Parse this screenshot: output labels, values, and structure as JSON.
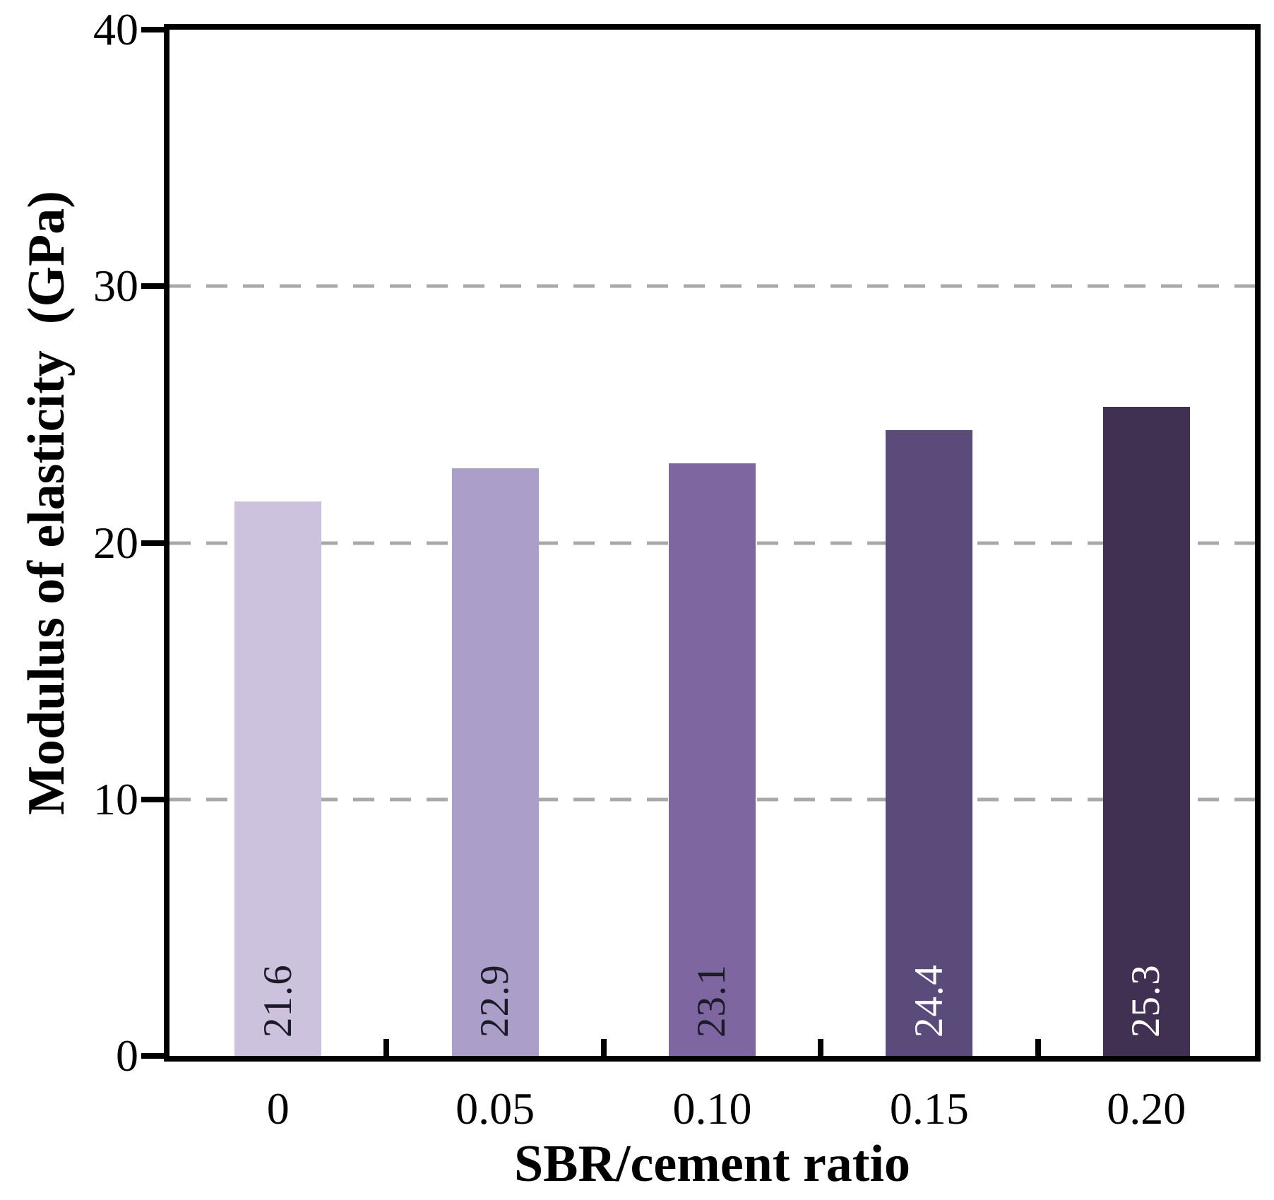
{
  "chart_data": {
    "type": "bar",
    "title": "",
    "xlabel": "SBR/cement ratio",
    "ylabel": "Modulus of elasticity  (GPa)",
    "categories": [
      "0",
      "0.05",
      "0.10",
      "0.15",
      "0.20"
    ],
    "values": [
      21.6,
      22.9,
      23.1,
      24.4,
      25.3
    ],
    "data_labels": [
      "21.6",
      "22.9",
      "23.1",
      "24.4",
      "25.3"
    ],
    "bar_colors": [
      "#cdc2de",
      "#ab9fc9",
      "#7e66a1",
      "#5b4b7a",
      "#403152"
    ],
    "data_label_colors": [
      "#1c1b2a",
      "#1c1b2a",
      "#1c1b2a",
      "#ffffff",
      "#ffffff"
    ],
    "ylim": [
      0,
      40
    ],
    "yticks": [
      0,
      10,
      20,
      30,
      40
    ],
    "ytick_labels": [
      "0",
      "10",
      "20",
      "30",
      "40"
    ],
    "gridlines": [
      10,
      20,
      30
    ],
    "grid": "horizontal-dashed",
    "legend_position": "none",
    "axis_color": "#000000",
    "gridline_color": "#a9a9a9",
    "background_color": "#ffffff"
  }
}
